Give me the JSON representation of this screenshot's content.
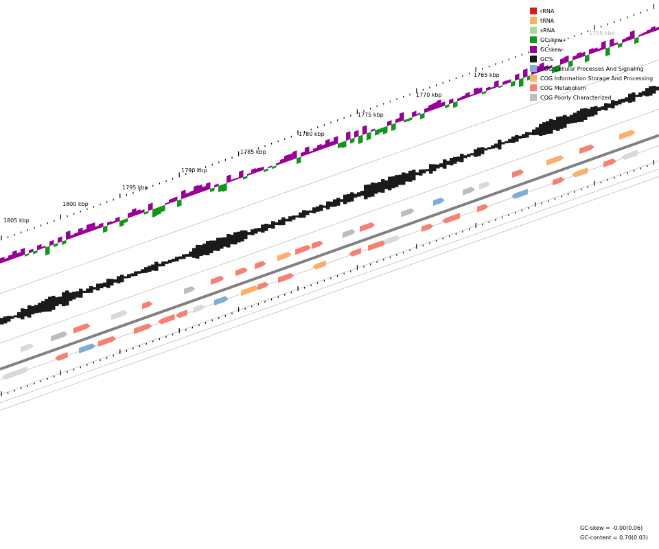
{
  "scale_labels": [
    {
      "text": "1755 kbp",
      "faded": true
    },
    {
      "text": "1765 kbp"
    },
    {
      "text": "1770 kbp"
    },
    {
      "text": "1775 kbp"
    },
    {
      "text": "1780 kbp"
    },
    {
      "text": "1785 kbp"
    },
    {
      "text": "1790 kbp"
    },
    {
      "text": "1795 kbp"
    },
    {
      "text": "1800 kbp"
    },
    {
      "text": "1805 kbp"
    }
  ],
  "legend": [
    {
      "label": "rRNA",
      "color": "#d7191c"
    },
    {
      "label": "tRNA",
      "color": "#fdae61"
    },
    {
      "label": "sRNA",
      "color": "#a6d996"
    },
    {
      "label": "GCskew+",
      "color": "#109618"
    },
    {
      "label": "GCskew-",
      "color": "#990099"
    },
    {
      "label": "GC%",
      "color": "#1a1a1a"
    },
    {
      "label": "COG Cellular Processes And Signaling",
      "color": "#7eadd6"
    },
    {
      "label": "COG Information Storage And Processing",
      "color": "#fdae6b"
    },
    {
      "label": "COG Metabolism",
      "color": "#f78073"
    },
    {
      "label": "COG Poorly Characterized",
      "color": "#bdbdbd"
    }
  ],
  "stats": {
    "gc_skew": "GC-skew = -0.00(0.06)",
    "gc_content": "GC-content = 0.70(0.03)"
  },
  "colors": {
    "skew_pos": "#109618",
    "skew_neg": "#990099",
    "gc": "#1a1a1a",
    "cog_cellular": "#7eadd6",
    "cog_info": "#fdae6b",
    "cog_metabolism": "#f78073",
    "cog_poor": "#bdbdbd",
    "cog_poor_light": "#d9d9d9",
    "backbone": "#808080"
  }
}
